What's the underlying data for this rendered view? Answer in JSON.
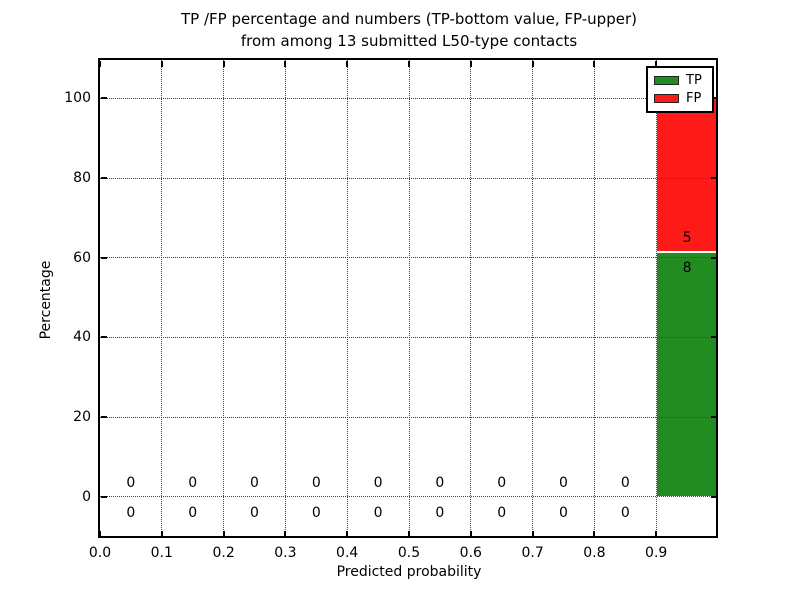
{
  "title": {
    "line1": "TP /FP percentage and numbers (TP-bottom value, FP-upper)",
    "line2": "from among 13 submitted L50-type contacts"
  },
  "axes": {
    "xlabel": "Predicted probability",
    "ylabel": "Percentage",
    "x_tick_labels": [
      "0.0",
      "0.1",
      "0.2",
      "0.3",
      "0.4",
      "0.5",
      "0.6",
      "0.7",
      "0.8",
      "0.9"
    ],
    "y_tick_labels": [
      "0",
      "20",
      "40",
      "60",
      "80",
      "100"
    ]
  },
  "legend": {
    "items": [
      {
        "label": "TP",
        "color": "#228b22"
      },
      {
        "label": "FP",
        "color": "#ff1a1a"
      }
    ]
  },
  "chart_data": {
    "type": "bar",
    "stacked": true,
    "title": "TP /FP percentage and numbers (TP-bottom value, FP-upper) from among 13 submitted L50-type contacts",
    "xlabel": "Predicted probability",
    "ylabel": "Percentage",
    "total_contacts": 13,
    "bin_width": 0.1,
    "grid": "dotted",
    "grid_above_bars": true,
    "legend_position": "upper right",
    "xlim": [
      0.0,
      1.0
    ],
    "ylim": [
      -10.3,
      109.6
    ],
    "x_tick_values": [
      0.0,
      0.1,
      0.2,
      0.3,
      0.4,
      0.5,
      0.6,
      0.7,
      0.8,
      0.9
    ],
    "y_tick_values": [
      0,
      20,
      40,
      60,
      80,
      100
    ],
    "categories": [
      "0.0-0.1",
      "0.1-0.2",
      "0.2-0.3",
      "0.3-0.4",
      "0.4-0.5",
      "0.5-0.6",
      "0.6-0.7",
      "0.7-0.8",
      "0.8-0.9",
      "0.9-1.0"
    ],
    "bin_centers": [
      0.05,
      0.15,
      0.25,
      0.35,
      0.45,
      0.55,
      0.65,
      0.75,
      0.85,
      0.95
    ],
    "series": [
      {
        "name": "TP",
        "color": "#228b22",
        "counts": [
          0,
          0,
          0,
          0,
          0,
          0,
          0,
          0,
          0,
          8
        ],
        "percentages": [
          0,
          0,
          0,
          0,
          0,
          0,
          0,
          0,
          0,
          61.5
        ]
      },
      {
        "name": "FP",
        "color": "#ff1a1a",
        "counts": [
          0,
          0,
          0,
          0,
          0,
          0,
          0,
          0,
          0,
          5
        ],
        "percentages": [
          0,
          0,
          0,
          0,
          0,
          0,
          0,
          0,
          0,
          38.5
        ]
      }
    ],
    "annotation_rule": "FP count printed above the TP/FP boundary, TP count printed below it, at each bin center",
    "label_offset_pct": {
      "fp_above": 3.5,
      "tp_below": 4.0
    }
  }
}
